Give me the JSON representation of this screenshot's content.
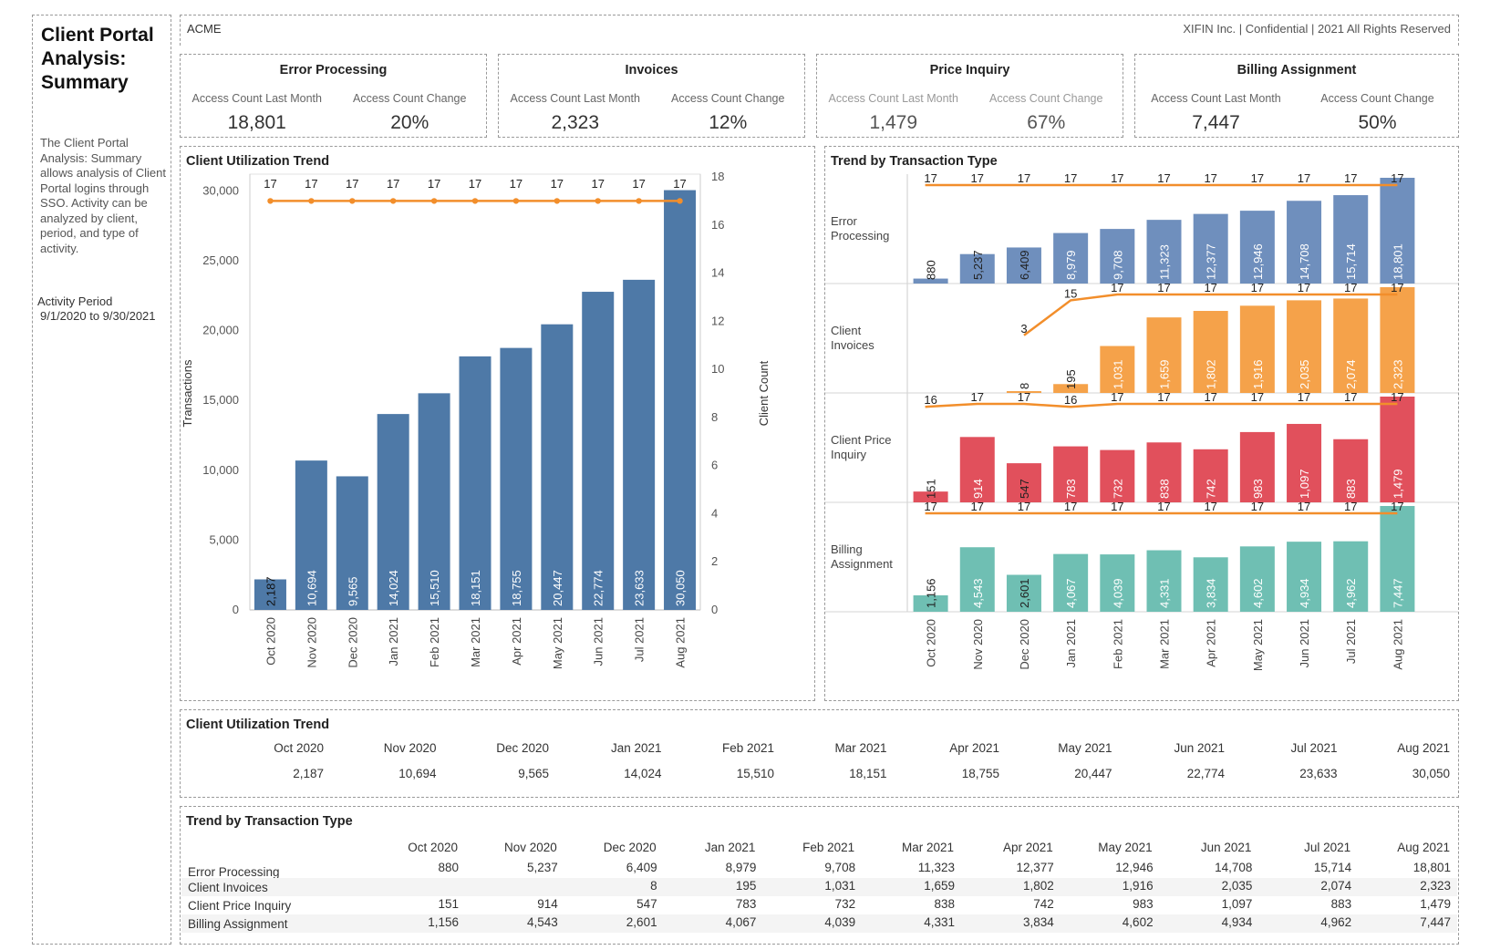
{
  "sidebar": {
    "title": "Client Portal Analysis: Summary",
    "description": "The Client Portal Analysis: Summary allows analysis of Client Portal logins through SSO. Activity can be analyzed by client, period, and type of activity.",
    "activity_period_label": "Activity Period",
    "activity_period_value": "9/1/2020 to 9/30/2021"
  },
  "header": {
    "client": "ACME",
    "right_text": "XIFIN Inc. | Confidential | 2021 All Rights Reserved"
  },
  "kpis": [
    {
      "title": "Error Processing",
      "label1": "Access Count Last Month",
      "value1": "18,801",
      "label2": "Access Count Change",
      "value2": "20%"
    },
    {
      "title": "Invoices",
      "label1": "Access Count Last Month",
      "value1": "2,323",
      "label2": "Access Count Change",
      "value2": "12%"
    },
    {
      "title": "Price Inquiry",
      "label1": "Access Count Last Month",
      "value1": "1,479",
      "label2": "Access Count Change",
      "value2": "67%"
    },
    {
      "title": "Billing Assignment",
      "label1": "Access Count Last Month",
      "value1": "7,447",
      "label2": "Access Count Change",
      "value2": "50%"
    }
  ],
  "colors": {
    "utilization_bar": "#4e79a7",
    "line": "#f28e2b",
    "error_processing": "#6f8fbd",
    "client_invoices": "#f5a24a",
    "client_price_inquiry": "#e1505c",
    "billing_assignment": "#6fbfb3"
  },
  "chart_data": [
    {
      "type": "bar",
      "title": "Client Utilization Trend",
      "categories": [
        "Oct 2020",
        "Nov 2020",
        "Dec 2020",
        "Jan 2021",
        "Feb 2021",
        "Mar 2021",
        "Apr 2021",
        "May 2021",
        "Jun 2021",
        "Jul 2021",
        "Aug 2021"
      ],
      "series": [
        {
          "name": "Transactions",
          "type": "bar",
          "values": [
            2187,
            10694,
            9565,
            14024,
            15510,
            18151,
            18755,
            20447,
            22774,
            23633,
            30050
          ],
          "labels": [
            "2,187",
            "10,694",
            "9,565",
            "14,024",
            "15,510",
            "18,151",
            "18,755",
            "20,447",
            "22,774",
            "23,633",
            "30,050"
          ]
        },
        {
          "name": "Client Count",
          "type": "line",
          "values": [
            17,
            17,
            17,
            17,
            17,
            17,
            17,
            17,
            17,
            17,
            17
          ]
        }
      ],
      "ylabel": "Transactions",
      "y2label": "Client Count",
      "ylim": [
        0,
        31000
      ],
      "y2lim": [
        0,
        18
      ],
      "yticks": [
        0,
        5000,
        10000,
        15000,
        20000,
        25000,
        30000
      ],
      "ytick_labels": [
        "0",
        "5,000",
        "10,000",
        "15,000",
        "20,000",
        "25,000",
        "30,000"
      ],
      "y2ticks": [
        0,
        2,
        4,
        6,
        8,
        10,
        12,
        14,
        16,
        18
      ],
      "y2tick_labels": [
        "0",
        "2",
        "4",
        "6",
        "8",
        "10",
        "12",
        "14",
        "16",
        "18"
      ]
    },
    {
      "type": "bar",
      "title": "Trend by Transaction Type",
      "categories": [
        "Oct 2020",
        "Nov 2020",
        "Dec 2020",
        "Jan 2021",
        "Feb 2021",
        "Mar 2021",
        "Apr 2021",
        "May 2021",
        "Jun 2021",
        "Jul 2021",
        "Aug 2021"
      ],
      "panels": [
        {
          "name": "Error Processing",
          "color_key": "error_processing",
          "values": [
            880,
            5237,
            6409,
            8979,
            9708,
            11323,
            12377,
            12946,
            14708,
            15714,
            18801
          ],
          "labels": [
            "880",
            "5,237",
            "6,409",
            "8,979",
            "9,708",
            "11,323",
            "12,377",
            "12,946",
            "14,708",
            "15,714",
            "18,801"
          ],
          "client_count": [
            17,
            17,
            17,
            17,
            17,
            17,
            17,
            17,
            17,
            17,
            17
          ]
        },
        {
          "name": "Client Invoices",
          "color_key": "client_invoices",
          "values": [
            null,
            null,
            8,
            195,
            1031,
            1659,
            1802,
            1916,
            2035,
            2074,
            2323
          ],
          "labels": [
            "",
            "",
            "8",
            "195",
            "1,031",
            "1,659",
            "1,802",
            "1,916",
            "2,035",
            "2,074",
            "2,323"
          ],
          "client_count": [
            null,
            null,
            3,
            15,
            17,
            17,
            17,
            17,
            17,
            17,
            17
          ]
        },
        {
          "name": "Client Price Inquiry",
          "color_key": "client_price_inquiry",
          "values": [
            151,
            914,
            547,
            783,
            732,
            838,
            742,
            983,
            1097,
            883,
            1479
          ],
          "labels": [
            "151",
            "914",
            "547",
            "783",
            "732",
            "838",
            "742",
            "983",
            "1,097",
            "883",
            "1,479"
          ],
          "client_count": [
            16,
            17,
            17,
            16,
            17,
            17,
            17,
            17,
            17,
            17,
            17
          ]
        },
        {
          "name": "Billing Assignment",
          "color_key": "billing_assignment",
          "values": [
            1156,
            4543,
            2601,
            4067,
            4039,
            4331,
            3834,
            4602,
            4934,
            4962,
            7447
          ],
          "labels": [
            "1,156",
            "4,543",
            "2,601",
            "4,067",
            "4,039",
            "4,331",
            "3,834",
            "4,602",
            "4,934",
            "4,962",
            "7,447"
          ],
          "client_count": [
            17,
            17,
            17,
            17,
            17,
            17,
            17,
            17,
            17,
            17,
            17
          ]
        }
      ]
    }
  ],
  "table1": {
    "title": "Client Utilization Trend",
    "headers": [
      "Oct 2020",
      "Nov 2020",
      "Dec 2020",
      "Jan 2021",
      "Feb 2021",
      "Mar 2021",
      "Apr 2021",
      "May 2021",
      "Jun 2021",
      "Jul 2021",
      "Aug 2021"
    ],
    "values": [
      "2,187",
      "10,694",
      "9,565",
      "14,024",
      "15,510",
      "18,151",
      "18,755",
      "20,447",
      "22,774",
      "23,633",
      "30,050"
    ]
  },
  "table2": {
    "title": "Trend by Transaction Type",
    "headers": [
      "Oct 2020",
      "Nov 2020",
      "Dec 2020",
      "Jan 2021",
      "Feb 2021",
      "Mar 2021",
      "Apr 2021",
      "May 2021",
      "Jun 2021",
      "Jul 2021",
      "Aug 2021"
    ],
    "rows": [
      {
        "label": "Error Processing",
        "values": [
          "880",
          "5,237",
          "6,409",
          "8,979",
          "9,708",
          "11,323",
          "12,377",
          "12,946",
          "14,708",
          "15,714",
          "18,801"
        ]
      },
      {
        "label": "Client Invoices",
        "values": [
          "",
          "",
          "8",
          "195",
          "1,031",
          "1,659",
          "1,802",
          "1,916",
          "2,035",
          "2,074",
          "2,323"
        ]
      },
      {
        "label": "Client Price Inquiry",
        "values": [
          "151",
          "914",
          "547",
          "783",
          "732",
          "838",
          "742",
          "983",
          "1,097",
          "883",
          "1,479"
        ]
      },
      {
        "label": "Billing Assignment",
        "values": [
          "1,156",
          "4,543",
          "2,601",
          "4,067",
          "4,039",
          "4,331",
          "3,834",
          "4,602",
          "4,934",
          "4,962",
          "7,447"
        ]
      }
    ]
  }
}
